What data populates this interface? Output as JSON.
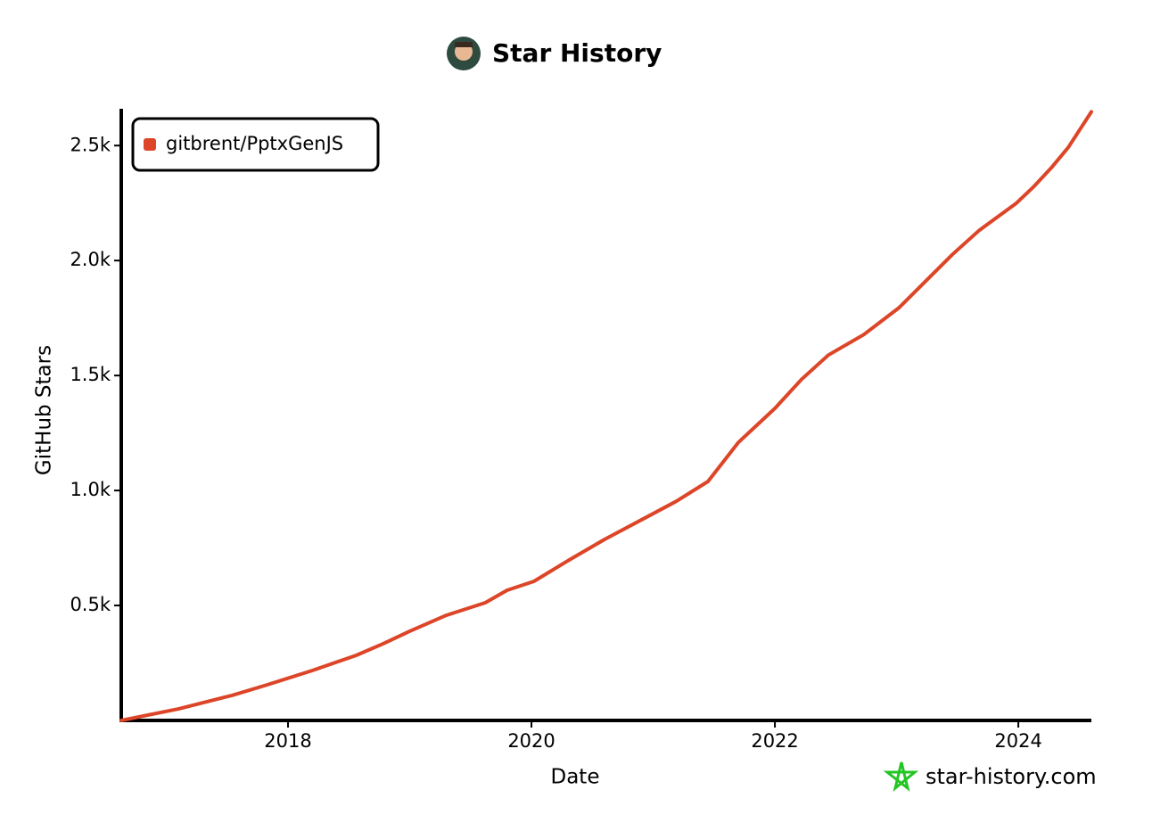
{
  "chart_data": {
    "type": "line",
    "title": "Star History",
    "x_label": "Date",
    "y_label": "GitHub Stars",
    "watermark": "star-history.com",
    "x": [
      2016.63,
      2017.1,
      2017.54,
      2017.83,
      2018.2,
      2018.56,
      2018.78,
      2019.0,
      2019.3,
      2019.62,
      2019.8,
      2020.02,
      2020.31,
      2020.6,
      2020.97,
      2021.19,
      2021.45,
      2021.7,
      2022.0,
      2022.22,
      2022.44,
      2022.73,
      2023.02,
      2023.24,
      2023.46,
      2023.68,
      2023.98,
      2024.12,
      2024.27,
      2024.41,
      2024.6
    ],
    "series": [
      {
        "name": "gitbrent/PptxGenJS",
        "color": "#dd4528",
        "values": [
          0,
          50,
          109,
          155,
          217,
          283,
          333,
          388,
          457,
          512,
          566,
          605,
          698,
          787,
          891,
          953,
          1039,
          1209,
          1357,
          1484,
          1589,
          1678,
          1795,
          1911,
          2027,
          2132,
          2248,
          2318,
          2403,
          2492,
          2647
        ]
      }
    ],
    "xlim": [
      2016.63,
      2024.6
    ],
    "xticks": [
      2018,
      2020,
      2022,
      2024
    ],
    "ylim": [
      0,
      2660
    ],
    "yticks": [
      {
        "value": 500,
        "label": "0.5k"
      },
      {
        "value": 1000,
        "label": "1.0k"
      },
      {
        "value": 1500,
        "label": "1.5k"
      },
      {
        "value": 2000,
        "label": "2.0k"
      },
      {
        "value": 2500,
        "label": "2.5k"
      }
    ],
    "legend": "top-left",
    "grid": false
  }
}
